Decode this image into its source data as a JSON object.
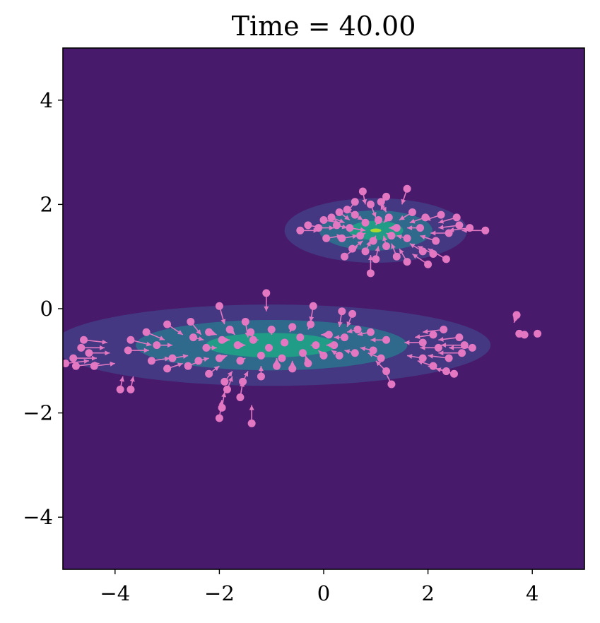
{
  "chart_data": {
    "type": "scatter",
    "title": "Time = 40.00",
    "xlabel": "",
    "ylabel": "",
    "xlim": [
      -5,
      5
    ],
    "ylim": [
      -5,
      5
    ],
    "xticks": [
      -4,
      -2,
      0,
      2,
      4
    ],
    "yticks": [
      -4,
      -2,
      0,
      2,
      4
    ],
    "xtick_labels": [
      "−4",
      "−2",
      "0",
      "2",
      "4"
    ],
    "ytick_labels": [
      "−4",
      "−2",
      "0",
      "2",
      "4"
    ],
    "grid": false,
    "colors": {
      "background": "#481a6c",
      "contour_levels": [
        "#433e85",
        "#2d708e",
        "#20a386",
        "#bddf26"
      ],
      "particles": "#e377c2"
    },
    "density_blobs": [
      {
        "name": "lower",
        "center": [
          -1.0,
          -0.7
        ],
        "rx": 4.2,
        "ry": 0.78
      },
      {
        "name": "upper",
        "center": [
          1.0,
          1.5
        ],
        "rx": 1.75,
        "ry": 0.62
      }
    ],
    "particles": [
      {
        "x": 0.6,
        "y": 2.05,
        "dx": -0.15,
        "dy": -0.2
      },
      {
        "x": 0.9,
        "y": 2.0,
        "dx": 0.1,
        "dy": -0.25
      },
      {
        "x": 1.1,
        "y": 2.05,
        "dx": 0.1,
        "dy": -0.2
      },
      {
        "x": 1.2,
        "y": 2.15,
        "dx": -0.1,
        "dy": -0.25
      },
      {
        "x": 1.6,
        "y": 2.3,
        "dx": -0.1,
        "dy": -0.3
      },
      {
        "x": 0.75,
        "y": 2.25,
        "dx": 0.05,
        "dy": -0.25
      },
      {
        "x": 0.3,
        "y": 1.85,
        "dx": 0.2,
        "dy": -0.15
      },
      {
        "x": 0.15,
        "y": 1.75,
        "dx": 0.25,
        "dy": -0.1
      },
      {
        "x": 0.45,
        "y": 1.9,
        "dx": 0.2,
        "dy": -0.15
      },
      {
        "x": 0.0,
        "y": 1.7,
        "dx": 0.3,
        "dy": -0.05
      },
      {
        "x": -0.1,
        "y": 1.55,
        "dx": 0.3,
        "dy": 0.0
      },
      {
        "x": -0.45,
        "y": 1.5,
        "dx": 0.35,
        "dy": 0.0
      },
      {
        "x": -0.3,
        "y": 1.6,
        "dx": 0.3,
        "dy": -0.05
      },
      {
        "x": 0.05,
        "y": 1.35,
        "dx": 0.3,
        "dy": 0.05
      },
      {
        "x": 0.35,
        "y": 1.35,
        "dx": 0.3,
        "dy": 0.05
      },
      {
        "x": 0.5,
        "y": 1.55,
        "dx": 0.3,
        "dy": -0.05
      },
      {
        "x": 0.55,
        "y": 1.15,
        "dx": 0.2,
        "dy": 0.15
      },
      {
        "x": 0.4,
        "y": 1.0,
        "dx": 0.25,
        "dy": 0.2
      },
      {
        "x": 0.8,
        "y": 1.1,
        "dx": 0.1,
        "dy": 0.2
      },
      {
        "x": 0.9,
        "y": 0.68,
        "dx": 0.0,
        "dy": 0.35
      },
      {
        "x": 1.0,
        "y": 0.95,
        "dx": 0.05,
        "dy": 0.25
      },
      {
        "x": 1.2,
        "y": 1.2,
        "dx": -0.05,
        "dy": 0.2
      },
      {
        "x": 1.4,
        "y": 1.0,
        "dx": -0.1,
        "dy": 0.25
      },
      {
        "x": 1.6,
        "y": 0.9,
        "dx": -0.15,
        "dy": 0.25
      },
      {
        "x": 1.9,
        "y": 1.1,
        "dx": -0.25,
        "dy": 0.15
      },
      {
        "x": 2.1,
        "y": 1.05,
        "dx": -0.3,
        "dy": 0.15
      },
      {
        "x": 2.0,
        "y": 0.85,
        "dx": -0.3,
        "dy": 0.2
      },
      {
        "x": 2.35,
        "y": 0.95,
        "dx": -0.35,
        "dy": 0.2
      },
      {
        "x": 2.15,
        "y": 1.3,
        "dx": -0.3,
        "dy": 0.1
      },
      {
        "x": 2.4,
        "y": 1.45,
        "dx": -0.35,
        "dy": 0.0
      },
      {
        "x": 2.6,
        "y": 1.6,
        "dx": -0.4,
        "dy": -0.05
      },
      {
        "x": 2.8,
        "y": 1.55,
        "dx": -0.4,
        "dy": -0.05
      },
      {
        "x": 3.1,
        "y": 1.5,
        "dx": -0.45,
        "dy": 0.0
      },
      {
        "x": 2.55,
        "y": 1.75,
        "dx": -0.35,
        "dy": -0.1
      },
      {
        "x": 2.25,
        "y": 1.8,
        "dx": -0.3,
        "dy": -0.1
      },
      {
        "x": 1.95,
        "y": 1.75,
        "dx": -0.3,
        "dy": -0.1
      },
      {
        "x": 1.7,
        "y": 1.85,
        "dx": -0.25,
        "dy": -0.15
      },
      {
        "x": 1.85,
        "y": 1.55,
        "dx": -0.25,
        "dy": 0.0
      },
      {
        "x": 1.6,
        "y": 1.35,
        "dx": -0.2,
        "dy": 0.05
      },
      {
        "x": 1.4,
        "y": 1.55,
        "dx": -0.15,
        "dy": 0.0
      },
      {
        "x": 1.25,
        "y": 1.75,
        "dx": -0.1,
        "dy": -0.1
      },
      {
        "x": 1.05,
        "y": 1.7,
        "dx": -0.05,
        "dy": -0.1
      },
      {
        "x": 0.8,
        "y": 1.65,
        "dx": 0.05,
        "dy": -0.05
      },
      {
        "x": 0.7,
        "y": 1.4,
        "dx": 0.1,
        "dy": 0.05
      },
      {
        "x": 0.95,
        "y": 1.3,
        "dx": 0.05,
        "dy": 0.1
      },
      {
        "x": 1.3,
        "y": 1.4,
        "dx": -0.1,
        "dy": 0.05
      },
      {
        "x": 0.6,
        "y": 1.8,
        "dx": 0.15,
        "dy": -0.1
      },
      {
        "x": 0.25,
        "y": 1.6,
        "dx": 0.2,
        "dy": -0.05
      },
      {
        "x": -2.0,
        "y": 0.05,
        "dx": 0.1,
        "dy": -0.35
      },
      {
        "x": -1.1,
        "y": 0.3,
        "dx": 0.0,
        "dy": -0.35
      },
      {
        "x": -0.2,
        "y": 0.05,
        "dx": -0.05,
        "dy": -0.3
      },
      {
        "x": 0.35,
        "y": -0.05,
        "dx": -0.05,
        "dy": -0.3
      },
      {
        "x": 0.55,
        "y": -0.1,
        "dx": -0.1,
        "dy": -0.25
      },
      {
        "x": -1.5,
        "y": -0.25,
        "dx": 0.05,
        "dy": -0.3
      },
      {
        "x": -2.55,
        "y": -0.25,
        "dx": 0.2,
        "dy": -0.25
      },
      {
        "x": -3.0,
        "y": -0.3,
        "dx": 0.3,
        "dy": -0.2
      },
      {
        "x": -3.4,
        "y": -0.45,
        "dx": 0.35,
        "dy": -0.15
      },
      {
        "x": -3.7,
        "y": -0.6,
        "dx": 0.4,
        "dy": -0.1
      },
      {
        "x": -3.75,
        "y": -0.8,
        "dx": 0.4,
        "dy": 0.0
      },
      {
        "x": -3.2,
        "y": -0.7,
        "dx": 0.3,
        "dy": 0.0
      },
      {
        "x": -2.9,
        "y": -0.95,
        "dx": 0.3,
        "dy": 0.05
      },
      {
        "x": -3.3,
        "y": -1.0,
        "dx": 0.35,
        "dy": 0.05
      },
      {
        "x": -3.0,
        "y": -1.15,
        "dx": 0.3,
        "dy": 0.1
      },
      {
        "x": -2.6,
        "y": -1.1,
        "dx": 0.25,
        "dy": 0.1
      },
      {
        "x": -2.2,
        "y": -1.25,
        "dx": 0.2,
        "dy": 0.15
      },
      {
        "x": -1.9,
        "y": -1.4,
        "dx": 0.15,
        "dy": 0.2
      },
      {
        "x": -1.85,
        "y": -1.55,
        "dx": 0.1,
        "dy": 0.25
      },
      {
        "x": -1.55,
        "y": -1.4,
        "dx": 0.1,
        "dy": 0.2
      },
      {
        "x": -1.6,
        "y": -1.7,
        "dx": 0.05,
        "dy": 0.3
      },
      {
        "x": -1.95,
        "y": -1.9,
        "dx": 0.05,
        "dy": 0.3
      },
      {
        "x": -2.0,
        "y": -2.1,
        "dx": 0.05,
        "dy": 0.35
      },
      {
        "x": -1.38,
        "y": -2.2,
        "dx": 0.0,
        "dy": 0.35
      },
      {
        "x": -1.2,
        "y": -1.3,
        "dx": 0.0,
        "dy": 0.2
      },
      {
        "x": -0.9,
        "y": -1.1,
        "dx": 0.0,
        "dy": 0.15
      },
      {
        "x": -0.6,
        "y": -1.15,
        "dx": 0.0,
        "dy": 0.15
      },
      {
        "x": -0.3,
        "y": -1.05,
        "dx": -0.05,
        "dy": 0.15
      },
      {
        "x": 0.0,
        "y": -0.9,
        "dx": -0.1,
        "dy": 0.1
      },
      {
        "x": 0.3,
        "y": -0.9,
        "dx": -0.15,
        "dy": 0.1
      },
      {
        "x": 0.6,
        "y": -0.85,
        "dx": -0.2,
        "dy": 0.05
      },
      {
        "x": 0.95,
        "y": -0.8,
        "dx": -0.25,
        "dy": 0.05
      },
      {
        "x": 1.2,
        "y": -1.2,
        "dx": -0.2,
        "dy": 0.2
      },
      {
        "x": 1.3,
        "y": -1.45,
        "dx": -0.15,
        "dy": 0.3
      },
      {
        "x": 1.1,
        "y": -0.95,
        "dx": -0.25,
        "dy": 0.1
      },
      {
        "x": 1.2,
        "y": -0.6,
        "dx": -0.3,
        "dy": 0.0
      },
      {
        "x": 0.9,
        "y": -0.45,
        "dx": -0.25,
        "dy": -0.05
      },
      {
        "x": 0.65,
        "y": -0.4,
        "dx": -0.2,
        "dy": -0.05
      },
      {
        "x": 0.4,
        "y": -0.55,
        "dx": -0.2,
        "dy": 0.0
      },
      {
        "x": 0.1,
        "y": -0.5,
        "dx": -0.15,
        "dy": 0.0
      },
      {
        "x": -0.15,
        "y": -0.7,
        "dx": -0.1,
        "dy": 0.0
      },
      {
        "x": -0.45,
        "y": -0.55,
        "dx": -0.05,
        "dy": 0.0
      },
      {
        "x": -0.75,
        "y": -0.65,
        "dx": 0.0,
        "dy": 0.0
      },
      {
        "x": -1.05,
        "y": -0.75,
        "dx": 0.05,
        "dy": 0.0
      },
      {
        "x": -1.35,
        "y": -0.6,
        "dx": 0.1,
        "dy": 0.0
      },
      {
        "x": -1.65,
        "y": -0.7,
        "dx": 0.15,
        "dy": 0.0
      },
      {
        "x": -1.95,
        "y": -0.6,
        "dx": 0.15,
        "dy": 0.0
      },
      {
        "x": -2.25,
        "y": -0.75,
        "dx": 0.2,
        "dy": 0.0
      },
      {
        "x": -2.5,
        "y": -0.55,
        "dx": 0.2,
        "dy": -0.05
      },
      {
        "x": -2.2,
        "y": -0.45,
        "dx": 0.15,
        "dy": -0.05
      },
      {
        "x": -1.8,
        "y": -0.4,
        "dx": 0.1,
        "dy": -0.1
      },
      {
        "x": -1.4,
        "y": -0.45,
        "dx": 0.05,
        "dy": -0.1
      },
      {
        "x": -1.0,
        "y": -0.4,
        "dx": 0.0,
        "dy": -0.1
      },
      {
        "x": -0.6,
        "y": -0.35,
        "dx": -0.05,
        "dy": -0.1
      },
      {
        "x": -0.25,
        "y": -0.3,
        "dx": -0.05,
        "dy": -0.1
      },
      {
        "x": -1.2,
        "y": -0.9,
        "dx": 0.05,
        "dy": 0.05
      },
      {
        "x": -0.8,
        "y": -0.95,
        "dx": 0.0,
        "dy": 0.05
      },
      {
        "x": -1.6,
        "y": -1.0,
        "dx": 0.1,
        "dy": 0.05
      },
      {
        "x": -2.0,
        "y": -0.95,
        "dx": 0.15,
        "dy": 0.05
      },
      {
        "x": -2.4,
        "y": -1.0,
        "dx": 0.2,
        "dy": 0.05
      },
      {
        "x": -0.4,
        "y": -0.85,
        "dx": -0.05,
        "dy": 0.05
      },
      {
        "x": 0.2,
        "y": -0.7,
        "dx": -0.15,
        "dy": 0.0
      },
      {
        "x": -4.4,
        "y": -1.1,
        "dx": 0.4,
        "dy": 0.05
      },
      {
        "x": -4.6,
        "y": -0.6,
        "dx": 0.45,
        "dy": -0.05
      },
      {
        "x": -4.65,
        "y": -0.75,
        "dx": 0.45,
        "dy": 0.0
      },
      {
        "x": -4.8,
        "y": -0.95,
        "dx": 0.45,
        "dy": 0.0
      },
      {
        "x": -4.75,
        "y": -1.1,
        "dx": 0.45,
        "dy": 0.05
      },
      {
        "x": -4.95,
        "y": -1.05,
        "dx": 0.45,
        "dy": 0.05
      },
      {
        "x": -4.5,
        "y": -0.85,
        "dx": 0.4,
        "dy": 0.0
      },
      {
        "x": -3.9,
        "y": -1.55,
        "dx": 0.05,
        "dy": 0.25
      },
      {
        "x": -3.7,
        "y": -1.55,
        "dx": 0.05,
        "dy": 0.25
      },
      {
        "x": 1.9,
        "y": -0.65,
        "dx": -0.35,
        "dy": 0.0
      },
      {
        "x": 2.1,
        "y": -0.5,
        "dx": -0.35,
        "dy": -0.05
      },
      {
        "x": 2.3,
        "y": -0.4,
        "dx": -0.4,
        "dy": -0.05
      },
      {
        "x": 2.2,
        "y": -0.75,
        "dx": -0.35,
        "dy": 0.0
      },
      {
        "x": 2.4,
        "y": -0.95,
        "dx": -0.4,
        "dy": 0.05
      },
      {
        "x": 2.6,
        "y": -0.55,
        "dx": -0.4,
        "dy": -0.05
      },
      {
        "x": 2.7,
        "y": -0.7,
        "dx": -0.45,
        "dy": 0.0
      },
      {
        "x": 2.85,
        "y": -0.75,
        "dx": -0.45,
        "dy": 0.0
      },
      {
        "x": 2.65,
        "y": -0.85,
        "dx": -0.45,
        "dy": 0.0
      },
      {
        "x": 1.9,
        "y": -0.95,
        "dx": -0.3,
        "dy": 0.05
      },
      {
        "x": 2.1,
        "y": -1.1,
        "dx": -0.3,
        "dy": 0.1
      },
      {
        "x": 2.35,
        "y": -1.2,
        "dx": -0.35,
        "dy": 0.1
      },
      {
        "x": 2.5,
        "y": -1.25,
        "dx": -0.35,
        "dy": 0.1
      },
      {
        "x": 3.7,
        "y": -0.12,
        "dx": -0.05,
        "dy": -0.15
      },
      {
        "x": 3.75,
        "y": -0.48,
        "dx": 0.0,
        "dy": 0.0
      },
      {
        "x": 3.85,
        "y": -0.5,
        "dx": 0.0,
        "dy": 0.0
      },
      {
        "x": 4.1,
        "y": -0.48,
        "dx": 0.0,
        "dy": 0.0
      }
    ]
  }
}
